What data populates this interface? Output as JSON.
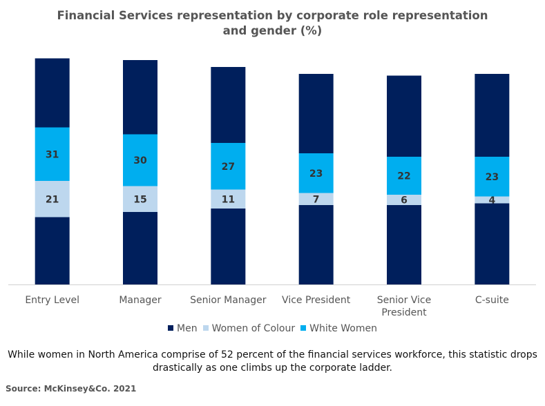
{
  "chart_data": {
    "type": "bar",
    "stacked": true,
    "title": "Financial Services representation by corporate role representation and gender (%)",
    "title_lines": [
      "Financial Services representation by corporate role representation",
      "and gender (%)"
    ],
    "categories": [
      "Entry Level",
      "Manager",
      "Senior Manager",
      "Vice President",
      "Senior Vice President",
      "C-suite"
    ],
    "category_lines": [
      [
        "Entry Level"
      ],
      [
        "Manager"
      ],
      [
        "Senior Manager"
      ],
      [
        "Vice President"
      ],
      [
        "Senior Vice",
        "President"
      ],
      [
        "C-suite"
      ]
    ],
    "series": [
      {
        "name": "Men",
        "color": "#001f5c",
        "values": [
          39,
          42,
          44,
          46,
          46,
          47
        ],
        "labels": false
      },
      {
        "name": "Women of Colour",
        "color": "#bdd7ee",
        "values": [
          21,
          15,
          11,
          7,
          6,
          4
        ],
        "labels": true
      },
      {
        "name": "White Women",
        "color": "#00aeef",
        "values": [
          31,
          30,
          27,
          23,
          22,
          23
        ],
        "labels": true
      },
      {
        "name": "Men",
        "color": "#001f5c",
        "values": [
          40,
          43,
          44,
          46,
          47,
          48
        ],
        "labels": false
      }
    ],
    "legend": [
      {
        "name": "Men",
        "color": "#001f5c"
      },
      {
        "name": "Women of Colour",
        "color": "#bdd7ee"
      },
      {
        "name": "White Women",
        "color": "#00aeef"
      }
    ],
    "legend_position": "bottom",
    "ylim": [
      0,
      132
    ],
    "grid": false,
    "y_axis_visible": false,
    "xlabel": "",
    "ylabel": ""
  },
  "note": "While  women in North America comprise  of 52 percent of the financial services workforce, this statistic drops drastically  as one climbs  up the corporate ladder.",
  "source": "Source: McKinsey&Co. 2021"
}
